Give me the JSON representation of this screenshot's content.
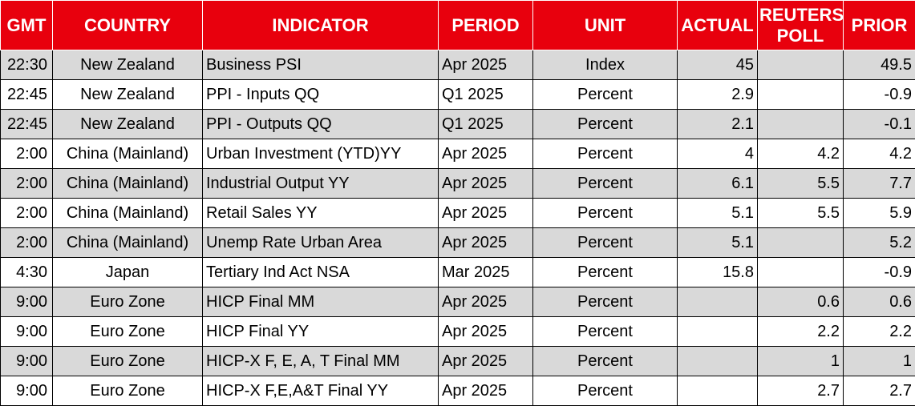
{
  "columns": [
    "GMT",
    "COUNTRY",
    "INDICATOR",
    "PERIOD",
    "UNIT",
    "ACTUAL",
    "REUTERS POLL",
    "PRIOR"
  ],
  "rows": [
    {
      "gmt": "22:30",
      "country": "New Zealand",
      "indicator": "Business PSI",
      "period": "Apr 2025",
      "unit": "Index",
      "actual": "45",
      "poll": "",
      "prior": "49.5"
    },
    {
      "gmt": "22:45",
      "country": "New Zealand",
      "indicator": "PPI - Inputs QQ",
      "period": "Q1 2025",
      "unit": "Percent",
      "actual": "2.9",
      "poll": "",
      "prior": "-0.9"
    },
    {
      "gmt": "22:45",
      "country": "New Zealand",
      "indicator": "PPI - Outputs QQ",
      "period": "Q1 2025",
      "unit": "Percent",
      "actual": "2.1",
      "poll": "",
      "prior": "-0.1"
    },
    {
      "gmt": "2:00",
      "country": "China (Mainland)",
      "indicator": "Urban Investment (YTD)YY",
      "period": "Apr 2025",
      "unit": "Percent",
      "actual": "4",
      "poll": "4.2",
      "prior": "4.2"
    },
    {
      "gmt": "2:00",
      "country": "China (Mainland)",
      "indicator": "Industrial Output YY",
      "period": "Apr 2025",
      "unit": "Percent",
      "actual": "6.1",
      "poll": "5.5",
      "prior": "7.7"
    },
    {
      "gmt": "2:00",
      "country": "China (Mainland)",
      "indicator": "Retail Sales YY",
      "period": "Apr 2025",
      "unit": "Percent",
      "actual": "5.1",
      "poll": "5.5",
      "prior": "5.9"
    },
    {
      "gmt": "2:00",
      "country": "China (Mainland)",
      "indicator": "Unemp Rate Urban Area",
      "period": "Apr 2025",
      "unit": "Percent",
      "actual": "5.1",
      "poll": "",
      "prior": "5.2"
    },
    {
      "gmt": "4:30",
      "country": "Japan",
      "indicator": "Tertiary Ind Act NSA",
      "period": "Mar 2025",
      "unit": "Percent",
      "actual": "15.8",
      "poll": "",
      "prior": "-0.9"
    },
    {
      "gmt": "9:00",
      "country": "Euro Zone",
      "indicator": "HICP Final MM",
      "period": "Apr 2025",
      "unit": "Percent",
      "actual": "",
      "poll": "0.6",
      "prior": "0.6"
    },
    {
      "gmt": "9:00",
      "country": "Euro Zone",
      "indicator": "HICP Final YY",
      "period": "Apr 2025",
      "unit": "Percent",
      "actual": "",
      "poll": "2.2",
      "prior": "2.2"
    },
    {
      "gmt": "9:00",
      "country": "Euro Zone",
      "indicator": "HICP-X F, E, A, T Final MM",
      "period": "Apr 2025",
      "unit": "Percent",
      "actual": "",
      "poll": "1",
      "prior": "1"
    },
    {
      "gmt": "9:00",
      "country": "Euro Zone",
      "indicator": "HICP-X F,E,A&T Final YY",
      "period": "Apr 2025",
      "unit": "Percent",
      "actual": "",
      "poll": "2.7",
      "prior": "2.7"
    }
  ],
  "colors": {
    "header_bg": "#e8000d",
    "header_text": "#ffffff",
    "row_shade": "#d9d9d9"
  }
}
